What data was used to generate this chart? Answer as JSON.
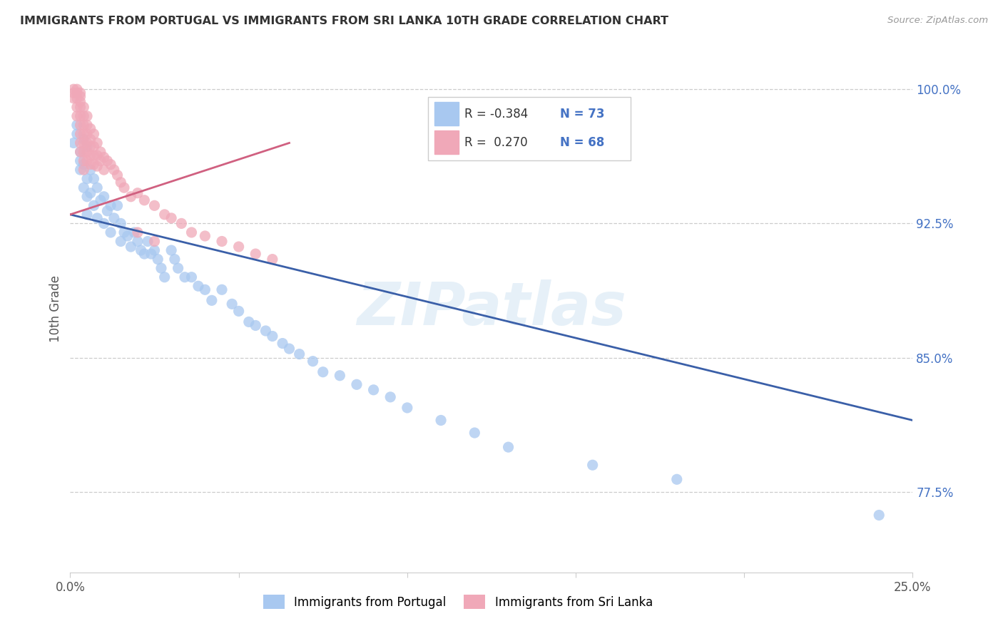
{
  "title": "IMMIGRANTS FROM PORTUGAL VS IMMIGRANTS FROM SRI LANKA 10TH GRADE CORRELATION CHART",
  "source": "Source: ZipAtlas.com",
  "ylabel": "10th Grade",
  "xlim": [
    0.0,
    0.25
  ],
  "ylim": [
    0.73,
    1.025
  ],
  "watermark": "ZIPatlas",
  "legend_R1": "-0.384",
  "legend_N1": "73",
  "legend_R2": "0.270",
  "legend_N2": "68",
  "color_portugal": "#a8c8f0",
  "color_sri_lanka": "#f0a8b8",
  "color_line_portugal": "#3a5fa8",
  "color_line_sri_lanka": "#d06080",
  "label_portugal": "Immigrants from Portugal",
  "label_sri_lanka": "Immigrants from Sri Lanka",
  "portugal_line_x": [
    0.0,
    0.25
  ],
  "portugal_line_y": [
    0.93,
    0.815
  ],
  "sri_lanka_line_x": [
    0.0,
    0.065
  ],
  "sri_lanka_line_y": [
    0.93,
    0.97
  ],
  "portugal_x": [
    0.001,
    0.002,
    0.002,
    0.003,
    0.003,
    0.003,
    0.004,
    0.004,
    0.004,
    0.005,
    0.005,
    0.005,
    0.005,
    0.006,
    0.006,
    0.007,
    0.007,
    0.008,
    0.008,
    0.009,
    0.01,
    0.01,
    0.011,
    0.012,
    0.012,
    0.013,
    0.014,
    0.015,
    0.015,
    0.016,
    0.017,
    0.018,
    0.019,
    0.02,
    0.021,
    0.022,
    0.023,
    0.024,
    0.025,
    0.026,
    0.027,
    0.028,
    0.03,
    0.031,
    0.032,
    0.034,
    0.036,
    0.038,
    0.04,
    0.042,
    0.045,
    0.048,
    0.05,
    0.053,
    0.055,
    0.058,
    0.06,
    0.063,
    0.065,
    0.068,
    0.072,
    0.075,
    0.08,
    0.085,
    0.09,
    0.095,
    0.1,
    0.11,
    0.12,
    0.13,
    0.155,
    0.18,
    0.24
  ],
  "portugal_y": [
    0.97,
    0.975,
    0.98,
    0.965,
    0.96,
    0.955,
    0.972,
    0.958,
    0.945,
    0.968,
    0.95,
    0.94,
    0.93,
    0.955,
    0.942,
    0.95,
    0.935,
    0.945,
    0.928,
    0.938,
    0.94,
    0.925,
    0.932,
    0.935,
    0.92,
    0.928,
    0.935,
    0.925,
    0.915,
    0.92,
    0.918,
    0.912,
    0.92,
    0.915,
    0.91,
    0.908,
    0.915,
    0.908,
    0.91,
    0.905,
    0.9,
    0.895,
    0.91,
    0.905,
    0.9,
    0.895,
    0.895,
    0.89,
    0.888,
    0.882,
    0.888,
    0.88,
    0.876,
    0.87,
    0.868,
    0.865,
    0.862,
    0.858,
    0.855,
    0.852,
    0.848,
    0.842,
    0.84,
    0.835,
    0.832,
    0.828,
    0.822,
    0.815,
    0.808,
    0.8,
    0.79,
    0.782,
    0.762
  ],
  "sri_lanka_x": [
    0.001,
    0.001,
    0.001,
    0.002,
    0.002,
    0.002,
    0.002,
    0.002,
    0.003,
    0.003,
    0.003,
    0.003,
    0.003,
    0.003,
    0.003,
    0.003,
    0.003,
    0.004,
    0.004,
    0.004,
    0.004,
    0.004,
    0.004,
    0.004,
    0.004,
    0.005,
    0.005,
    0.005,
    0.005,
    0.005,
    0.005,
    0.006,
    0.006,
    0.006,
    0.006,
    0.006,
    0.007,
    0.007,
    0.007,
    0.007,
    0.008,
    0.008,
    0.008,
    0.009,
    0.009,
    0.01,
    0.01,
    0.011,
    0.012,
    0.013,
    0.014,
    0.015,
    0.016,
    0.018,
    0.02,
    0.022,
    0.025,
    0.028,
    0.03,
    0.033,
    0.036,
    0.04,
    0.045,
    0.05,
    0.055,
    0.06,
    0.02,
    0.025
  ],
  "sri_lanka_y": [
    0.995,
    0.998,
    1.0,
    0.99,
    0.995,
    0.998,
    1.0,
    0.985,
    0.99,
    0.993,
    0.996,
    0.998,
    0.98,
    0.985,
    0.975,
    0.97,
    0.965,
    0.99,
    0.985,
    0.98,
    0.975,
    0.97,
    0.965,
    0.96,
    0.955,
    0.985,
    0.98,
    0.975,
    0.97,
    0.965,
    0.96,
    0.978,
    0.972,
    0.968,
    0.963,
    0.958,
    0.975,
    0.968,
    0.963,
    0.958,
    0.97,
    0.963,
    0.957,
    0.965,
    0.96,
    0.962,
    0.955,
    0.96,
    0.958,
    0.955,
    0.952,
    0.948,
    0.945,
    0.94,
    0.942,
    0.938,
    0.935,
    0.93,
    0.928,
    0.925,
    0.92,
    0.918,
    0.915,
    0.912,
    0.908,
    0.905,
    0.92,
    0.915
  ]
}
